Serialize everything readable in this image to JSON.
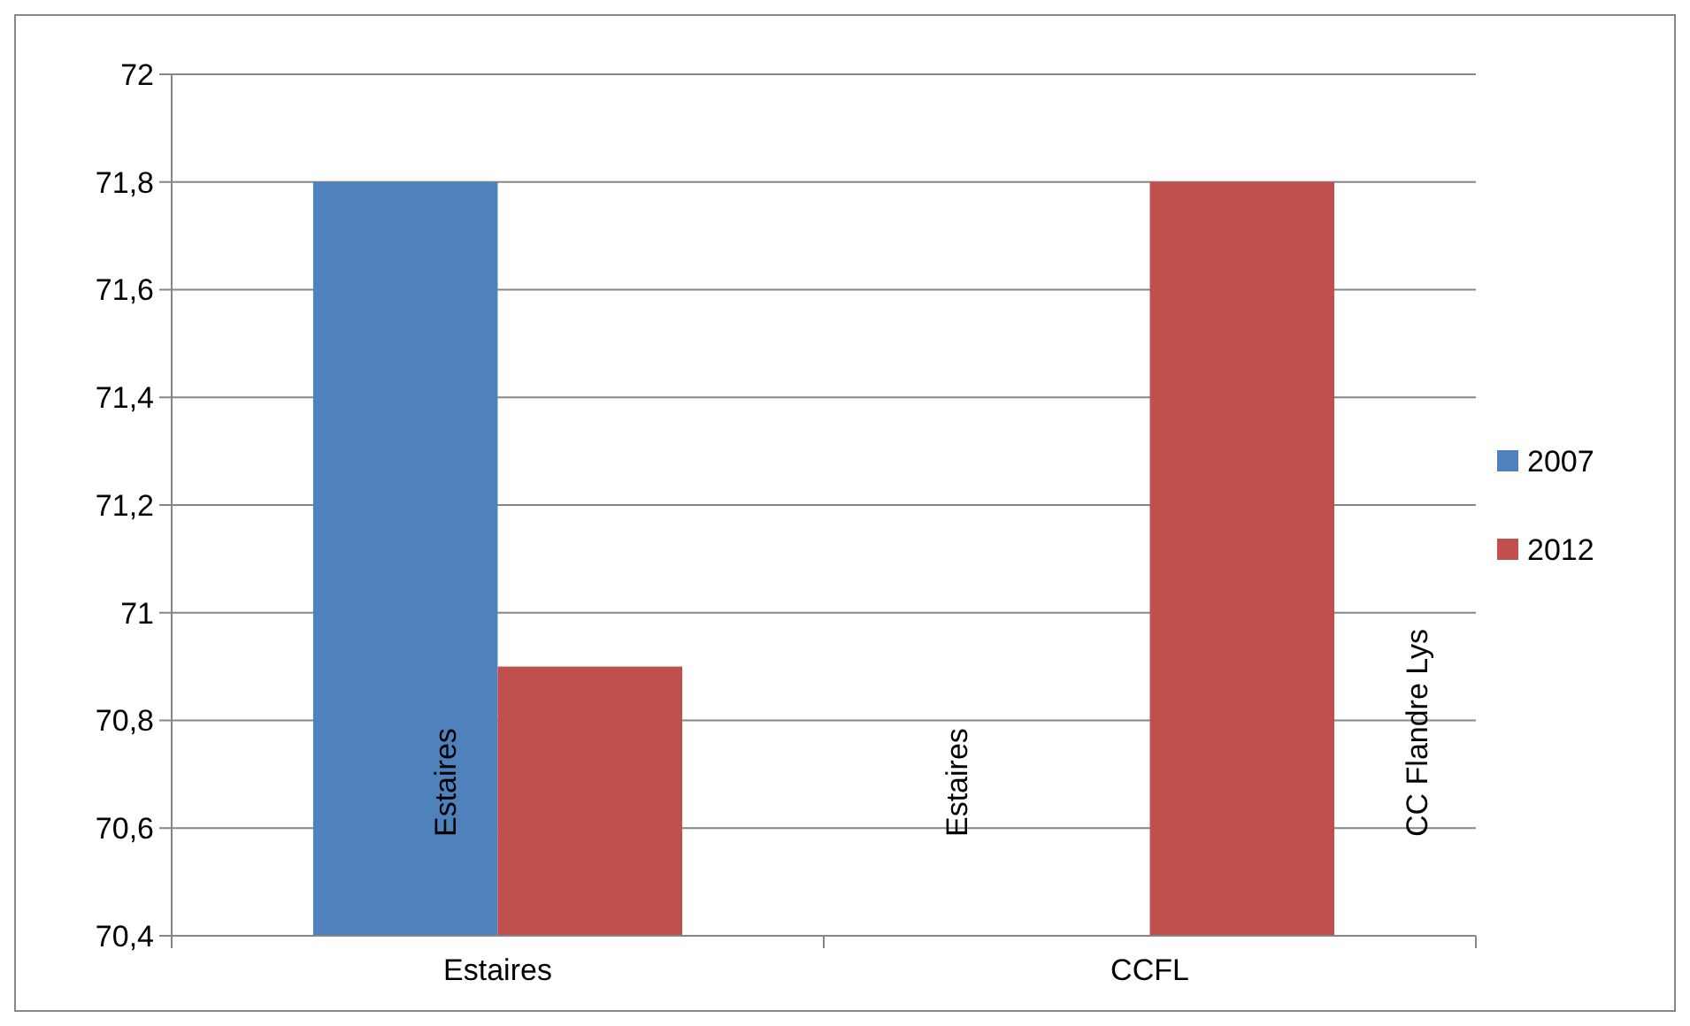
{
  "chart_data": {
    "type": "bar",
    "categories": [
      "Estaires",
      "CCFL"
    ],
    "series": [
      {
        "name": "2007",
        "color": "#4f81bd",
        "values": [
          71.8,
          70.4
        ]
      },
      {
        "name": "2012",
        "color": "#c0504d",
        "values": [
          70.9,
          71.8
        ]
      }
    ],
    "annotations": [
      "Estaires",
      "Estaires",
      "CC Flandre Lys"
    ],
    "ylim": [
      70.4,
      72
    ],
    "yticks": [
      {
        "value": 70.4,
        "label": "70,4"
      },
      {
        "value": 70.6,
        "label": "70,6"
      },
      {
        "value": 70.8,
        "label": "70,8"
      },
      {
        "value": 71,
        "label": "71"
      },
      {
        "value": 71.2,
        "label": "71,2"
      },
      {
        "value": 71.4,
        "label": "71,4"
      },
      {
        "value": 71.6,
        "label": "71,6"
      },
      {
        "value": 71.8,
        "label": "71,8"
      },
      {
        "value": 72,
        "label": "72"
      }
    ],
    "grid": "y",
    "legend": "right"
  }
}
